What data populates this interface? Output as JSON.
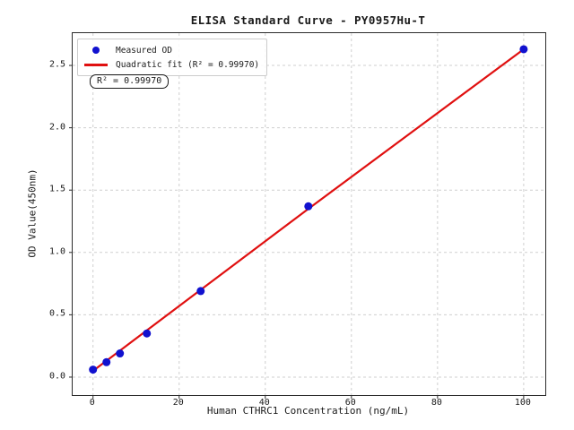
{
  "figure": {
    "title": "ELISA Standard Curve - PY0957Hu-T",
    "background": "#ffffff"
  },
  "legend": {
    "items": [
      {
        "marker": "dot-icon",
        "color": "#1111cf",
        "label": "Measured OD"
      },
      {
        "marker": "line-icon",
        "color": "#e01010",
        "label": "Quadratic fit (R² = 0.99970)"
      }
    ]
  },
  "annotation": {
    "r_squared_text": "R² = 0.99970"
  },
  "chart_data": {
    "type": "scatter",
    "title": "ELISA Standard Curve - PY0957Hu-T",
    "xlabel": "Human CTHRC1 Concentration (ng/mL)",
    "ylabel": "OD Value(450nm)",
    "x_ticks": [
      0,
      20,
      40,
      60,
      80,
      100
    ],
    "x_tick_labels": [
      "0",
      "20",
      "40",
      "60",
      "80",
      "100"
    ],
    "y_ticks": [
      0.0,
      0.5,
      1.0,
      1.5,
      2.0,
      2.5
    ],
    "y_tick_labels": [
      "0.0",
      "0.5",
      "1.0",
      "1.5",
      "2.0",
      "2.5"
    ],
    "xlim": [
      -4.73,
      105.02
    ],
    "ylim": [
      -0.144,
      2.759
    ],
    "grid": true,
    "legend_position": "upper left",
    "r_squared": "0.99970",
    "colors": {
      "grid": "#cfcfcf",
      "spine": "#2b2b2b",
      "points": "#1111cf",
      "fit_line": "#e01010"
    },
    "series": [
      {
        "name": "Measured OD",
        "type": "scatter",
        "color": "#1111cf",
        "points": [
          [
            0,
            0.06
          ],
          [
            3.125,
            0.12
          ],
          [
            6.25,
            0.19
          ],
          [
            12.5,
            0.35
          ],
          [
            25,
            0.69
          ],
          [
            50,
            1.37
          ],
          [
            100,
            2.63
          ]
        ]
      },
      {
        "name": "Quadratic fit (R² = 0.99970)",
        "type": "line",
        "color": "#e01010",
        "points": [
          [
            0,
            0.05
          ],
          [
            25,
            0.7
          ],
          [
            50,
            1.35
          ],
          [
            75,
            1.99
          ],
          [
            100,
            2.63
          ]
        ]
      }
    ]
  }
}
